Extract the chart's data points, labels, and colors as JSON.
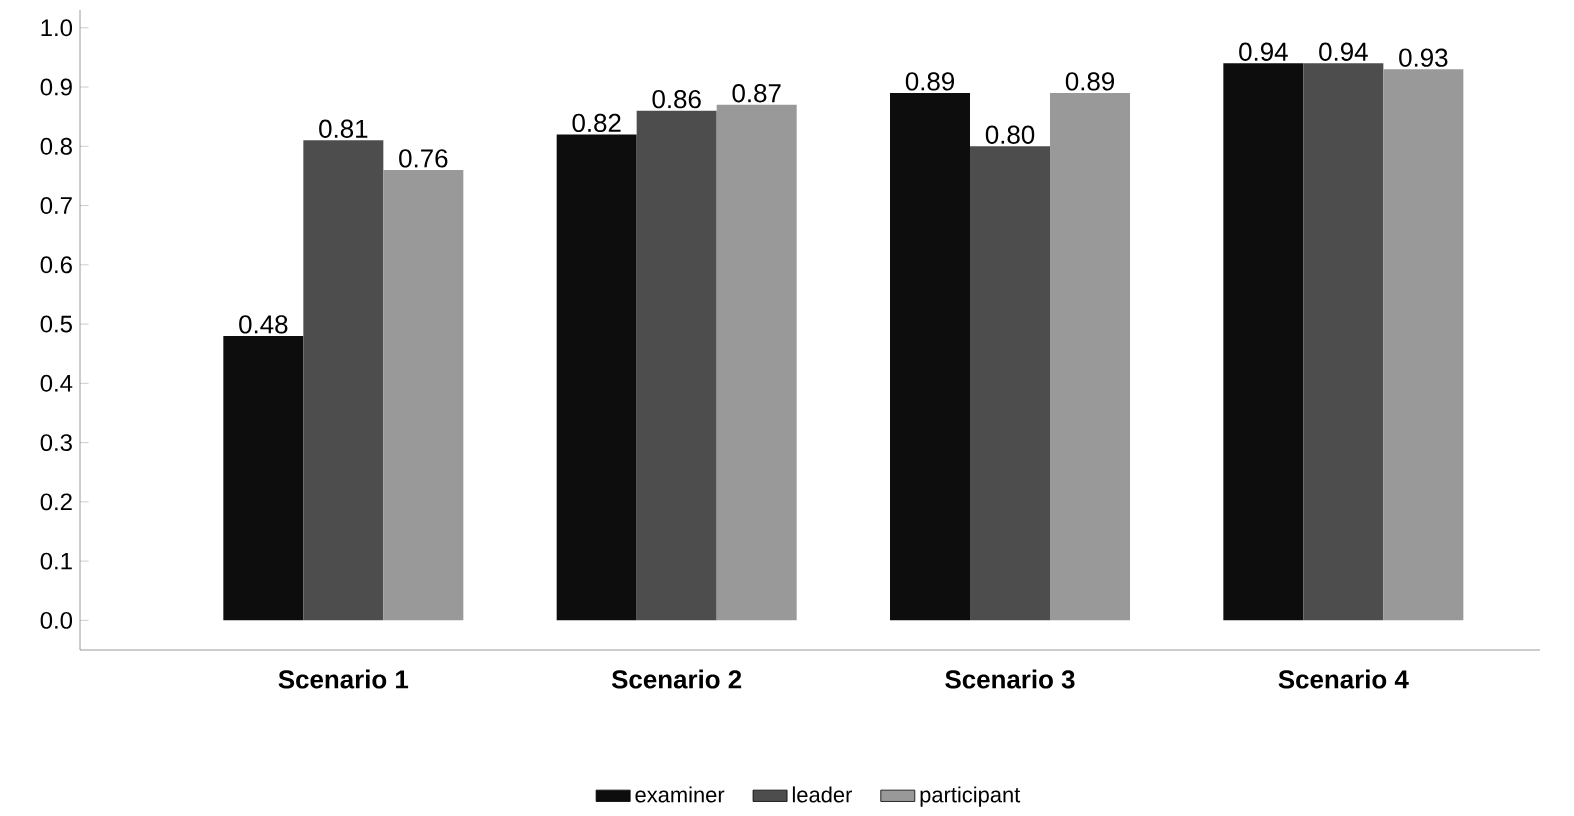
{
  "chart_data": {
    "type": "bar",
    "categories": [
      "Scenario 1",
      "Scenario 2",
      "Scenario 3",
      "Scenario 4"
    ],
    "series": [
      {
        "name": "examiner",
        "color": "#0d0d0d",
        "values": [
          0.48,
          0.82,
          0.89,
          0.94
        ],
        "value_labels": [
          "0.48",
          "0.82",
          "0.89",
          "0.94"
        ]
      },
      {
        "name": "leader",
        "color": "#4d4d4d",
        "values": [
          0.81,
          0.86,
          0.8,
          0.94
        ],
        "value_labels": [
          "0.81",
          "0.86",
          "0.80",
          "0.94"
        ]
      },
      {
        "name": "participant",
        "color": "#999999",
        "values": [
          0.76,
          0.87,
          0.89,
          0.93
        ],
        "value_labels": [
          "0.76",
          "0.87",
          "0.89",
          "0.93"
        ]
      }
    ],
    "ylim": [
      -0.05,
      1.03
    ],
    "yticks": [
      {
        "value": 0,
        "label": "0.0"
      },
      {
        "value": 0.1,
        "label": "0.1"
      },
      {
        "value": 0.2,
        "label": "0.2"
      },
      {
        "value": 0.3,
        "label": "0.3"
      },
      {
        "value": 0.4,
        "label": "0.4"
      },
      {
        "value": 0.5,
        "label": "0.5"
      },
      {
        "value": 0.6,
        "label": "0.6"
      },
      {
        "value": 0.7,
        "label": "0.7"
      },
      {
        "value": 0.8,
        "label": "0.8"
      },
      {
        "value": 0.9,
        "label": "0.9"
      },
      {
        "value": 1.0,
        "label": "1.0"
      }
    ],
    "grid": false,
    "legend": "bottom"
  }
}
